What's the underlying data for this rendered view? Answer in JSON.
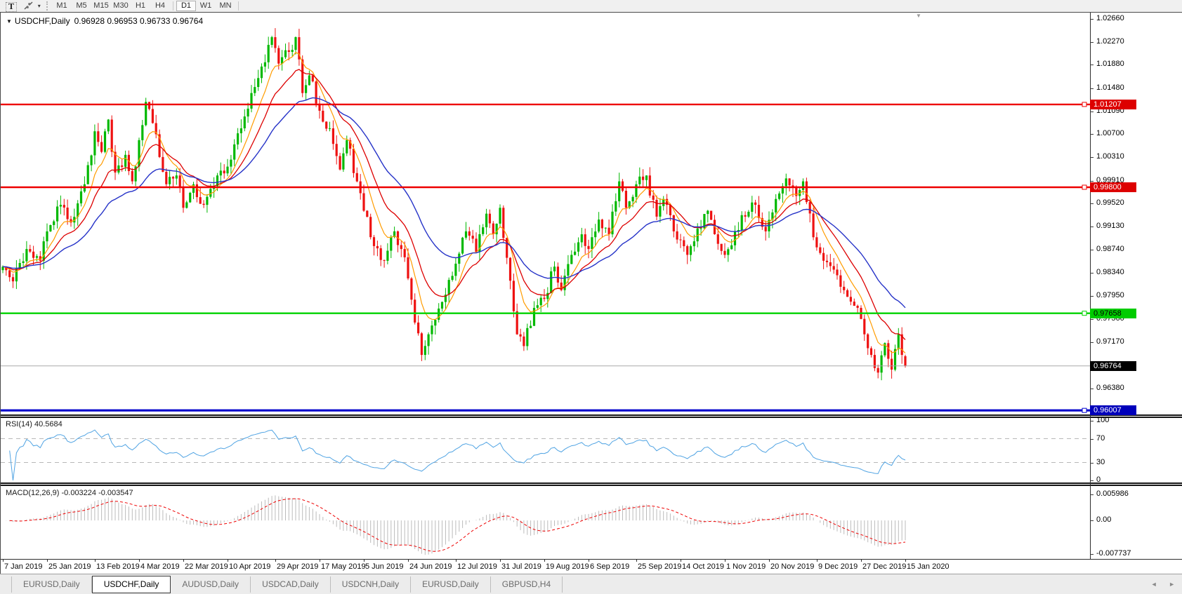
{
  "toolbar": {
    "text_tool_glyph": "T",
    "caret_glyph": "▾",
    "timeframes": [
      "M1",
      "M5",
      "M15",
      "M30",
      "H1",
      "H4",
      "D1",
      "W1",
      "MN"
    ],
    "active": "D1"
  },
  "chart": {
    "marker_glyph": "▼",
    "title": "USDCHF,Daily",
    "ohlc_text": "0.96928 0.96953 0.96733 0.96764",
    "shift_marker_glyph": "▼"
  },
  "rsi": {
    "name": "RSI(14)",
    "value": "40.5684",
    "scale": [
      "100",
      "70",
      "30",
      "0"
    ]
  },
  "macd": {
    "name": "MACD(12,26,9)",
    "values": "-0.003224 -0.003547",
    "scale": [
      "0.005986",
      "0.00",
      "-0.007737"
    ]
  },
  "tabs": [
    {
      "label": "EURUSD,Daily",
      "active": false
    },
    {
      "label": "USDCHF,Daily",
      "active": true
    },
    {
      "label": "AUDUSD,Daily",
      "active": false
    },
    {
      "label": "USDCAD,Daily",
      "active": false
    },
    {
      "label": "USDCNH,Daily",
      "active": false
    },
    {
      "label": "EURUSD,Daily",
      "active": false
    },
    {
      "label": "GBPUSD,H4",
      "active": false
    }
  ],
  "tab_scroll": {
    "left_glyph": "◄",
    "right_glyph": "►"
  },
  "colors": {
    "bull": "#00b800",
    "bear": "#ee1111",
    "ma_fast": "#ff9c00",
    "ma_mid": "#dd0000",
    "ma_slow": "#2633c8",
    "rsi": "#4fa3e3",
    "macd_hist": "#bbbbbb",
    "macd_signal": "#ee0000",
    "resistance": "#ee0000",
    "support_green": "#00cc00",
    "support_blue": "#0000cc"
  },
  "chart_data": {
    "type": "candlestick",
    "symbol": "USDCHF",
    "timeframe": "Daily",
    "bars": 266,
    "last_bar": {
      "o": 0.96928,
      "h": 0.96953,
      "l": 0.96733,
      "c": 0.96764
    },
    "price_range_visible": [
      0.95938,
      1.02767
    ],
    "y_ticks": [
      "1.02660",
      "1.02270",
      "1.01880",
      "1.01480",
      "1.01090",
      "1.00700",
      "1.00310",
      "0.99910",
      "0.99520",
      "0.99130",
      "0.98740",
      "0.98340",
      "0.97950",
      "0.97560",
      "0.97170",
      "0.96380"
    ],
    "x_labels": [
      "7 Jan 2019",
      "25 Jan 2019",
      "13 Feb 2019",
      "4 Mar 2019",
      "22 Mar 2019",
      "10 Apr 2019",
      "29 Apr 2019",
      "17 May 2019",
      "5 Jun 2019",
      "24 Jun 2019",
      "12 Jul 2019",
      "31 Jul 2019",
      "19 Aug 2019",
      "6 Sep 2019",
      "25 Sep 2019",
      "14 Oct 2019",
      "1 Nov 2019",
      "20 Nov 2019",
      "9 Dec 2019",
      "27 Dec 2019",
      "15 Jan 2020"
    ],
    "hlines": [
      {
        "value": 1.01207,
        "label": "1.01207",
        "color": "#ee0000",
        "width": 2.4,
        "badge_bg": "#dd0000",
        "badge_fg": "#ffffff"
      },
      {
        "value": 0.998,
        "label": "0.99800",
        "color": "#ee0000",
        "width": 2.4,
        "badge_bg": "#dd0000",
        "badge_fg": "#ffffff"
      },
      {
        "value": 0.97658,
        "label": "0.97658",
        "color": "#00d300",
        "width": 2.4,
        "badge_bg": "#00cc00",
        "badge_fg": "#000000"
      },
      {
        "value": 0.96007,
        "label": "0.96007",
        "color": "#0000cc",
        "width": 3.2,
        "badge_bg": "#0000bb",
        "badge_fg": "#ffffff"
      }
    ],
    "current_price": {
      "value": 0.96764,
      "label": "0.96764",
      "line_color": "#a8a8a8",
      "badge_bg": "#000000",
      "badge_fg": "#ffffff"
    },
    "indicators": {
      "ma_fast_period": 8,
      "ma_mid_period": 16,
      "ma_slow_period": 34,
      "rsi_period": 14,
      "macd": [
        12,
        26,
        9
      ],
      "rsi_last": 40.5684,
      "macd_last": -0.003224,
      "macd_signal_last": -0.003547
    },
    "close_anchors": [
      [
        0,
        0.9845
      ],
      [
        3,
        0.982
      ],
      [
        7,
        0.9875
      ],
      [
        11,
        0.9855
      ],
      [
        13,
        0.9905
      ],
      [
        17,
        0.995
      ],
      [
        20,
        0.992
      ],
      [
        24,
        0.9985
      ],
      [
        27,
        1.0075
      ],
      [
        29,
        1.004
      ],
      [
        31,
        1.0095
      ],
      [
        33,
        1.0005
      ],
      [
        36,
        1.0035
      ],
      [
        38,
        0.999
      ],
      [
        40,
        1.006
      ],
      [
        42,
        1.0125
      ],
      [
        45,
        1.007
      ],
      [
        48,
        0.9985
      ],
      [
        51,
        1.0
      ],
      [
        53,
        0.9945
      ],
      [
        56,
        0.9985
      ],
      [
        59,
        0.995
      ],
      [
        63,
        1.0
      ],
      [
        66,
        1.0015
      ],
      [
        70,
        1.008
      ],
      [
        73,
        1.014
      ],
      [
        76,
        1.0185
      ],
      [
        79,
        1.0235
      ],
      [
        81,
        1.019
      ],
      [
        84,
        1.021
      ],
      [
        86,
        1.0235
      ],
      [
        88,
        1.014
      ],
      [
        90,
        1.017
      ],
      [
        93,
        1.011
      ],
      [
        96,
        1.008
      ],
      [
        99,
        1.001
      ],
      [
        101,
        1.006
      ],
      [
        104,
        0.999
      ],
      [
        106,
        0.994
      ],
      [
        109,
        0.988
      ],
      [
        112,
        0.9855
      ],
      [
        115,
        0.9905
      ],
      [
        117,
        0.9875
      ],
      [
        119,
        0.9825
      ],
      [
        121,
        0.975
      ],
      [
        123,
        0.9695
      ],
      [
        126,
        0.9745
      ],
      [
        129,
        0.9785
      ],
      [
        133,
        0.985
      ],
      [
        136,
        0.9905
      ],
      [
        139,
        0.987
      ],
      [
        142,
        0.9935
      ],
      [
        144,
        0.99
      ],
      [
        146,
        0.9945
      ],
      [
        148,
        0.986
      ],
      [
        151,
        0.973
      ],
      [
        153,
        0.971
      ],
      [
        156,
        0.9775
      ],
      [
        159,
        0.979
      ],
      [
        162,
        0.9845
      ],
      [
        164,
        0.9805
      ],
      [
        167,
        0.9865
      ],
      [
        170,
        0.99
      ],
      [
        172,
        0.9875
      ],
      [
        175,
        0.9925
      ],
      [
        178,
        0.99
      ],
      [
        181,
        0.999
      ],
      [
        183,
        0.9945
      ],
      [
        186,
        0.9985
      ],
      [
        189,
        1.0
      ],
      [
        192,
        0.993
      ],
      [
        194,
        0.996
      ],
      [
        197,
        0.9905
      ],
      [
        199,
        0.989
      ],
      [
        201,
        0.9865
      ],
      [
        204,
        0.991
      ],
      [
        207,
        0.994
      ],
      [
        209,
        0.99
      ],
      [
        212,
        0.9865
      ],
      [
        215,
        0.9905
      ],
      [
        218,
        0.993
      ],
      [
        221,
        0.995
      ],
      [
        224,
        0.9905
      ],
      [
        227,
        0.996
      ],
      [
        230,
        0.9995
      ],
      [
        233,
        0.9965
      ],
      [
        235,
        0.999
      ],
      [
        238,
        0.9895
      ],
      [
        241,
        0.9855
      ],
      [
        244,
        0.984
      ],
      [
        247,
        0.9805
      ],
      [
        251,
        0.9775
      ],
      [
        253,
        0.973
      ],
      [
        255,
        0.9695
      ],
      [
        257,
        0.9665
      ],
      [
        259,
        0.9715
      ],
      [
        261,
        0.967
      ],
      [
        262,
        0.9705
      ],
      [
        263,
        0.973
      ],
      [
        264,
        0.9695
      ],
      [
        265,
        0.96764
      ]
    ]
  }
}
